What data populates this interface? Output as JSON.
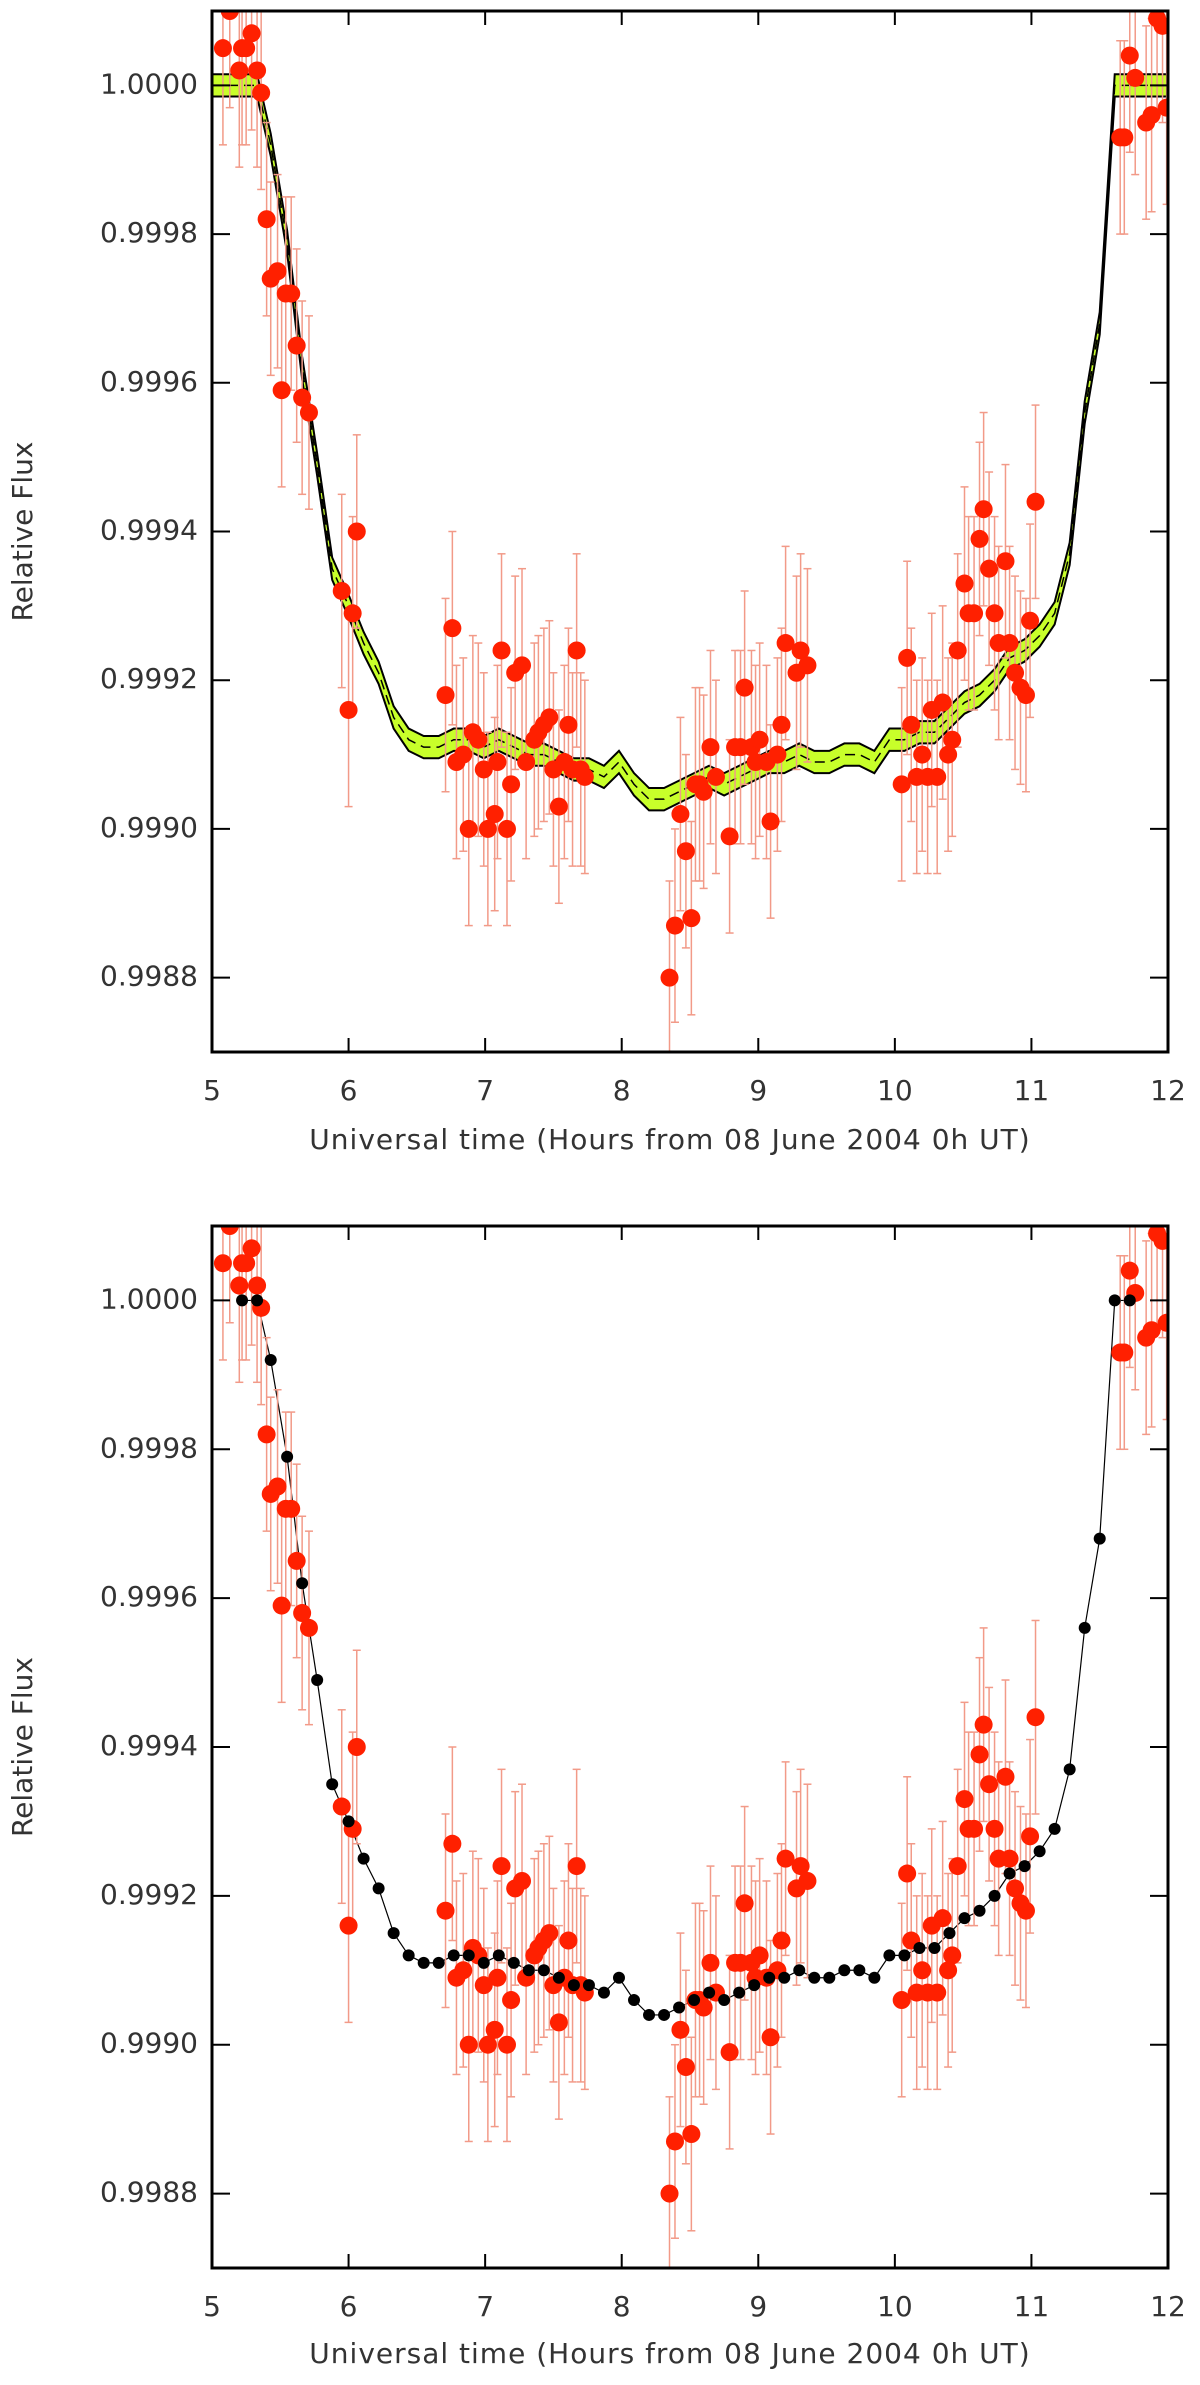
{
  "chart_data": [
    {
      "type": "scatter",
      "x_label": "Universal time (Hours from 08 June 2004 0h UT)",
      "y_label": "Relative Flux",
      "xlim": [
        5,
        12
      ],
      "ylim": [
        0.9987,
        1.0001
      ],
      "xticks": [
        5,
        6,
        7,
        8,
        9,
        10,
        11,
        12
      ],
      "yticks": [
        {
          "value": 0.9988,
          "label": "0.9988"
        },
        {
          "value": 0.999,
          "label": "0.9990"
        },
        {
          "value": 0.9992,
          "label": "0.9992"
        },
        {
          "value": 0.9994,
          "label": "0.9994"
        },
        {
          "value": 0.9996,
          "label": "0.9996"
        },
        {
          "value": 0.9998,
          "label": "0.9998"
        },
        {
          "value": 1,
          "label": "1.0000"
        }
      ],
      "color": "#ff2000",
      "error_color": "#f29a88",
      "error": 0.00013,
      "x": [
        5.08,
        5.13,
        5.2,
        5.22,
        5.25,
        5.29,
        5.33,
        5.36,
        5.4,
        5.43,
        5.48,
        5.51,
        5.54,
        5.58,
        5.62,
        5.66,
        5.71,
        5.95,
        6.0,
        6.03,
        6.06,
        6.71,
        6.76,
        6.79,
        6.84,
        6.88,
        6.91,
        6.95,
        6.99,
        7.02,
        7.07,
        7.09,
        7.12,
        7.16,
        7.19,
        7.22,
        7.27,
        7.3,
        7.36,
        7.39,
        7.43,
        7.47,
        7.5,
        7.54,
        7.58,
        7.61,
        7.64,
        7.67,
        7.7,
        7.73,
        8.35,
        8.39,
        8.43,
        8.47,
        8.51,
        8.54,
        8.57,
        8.6,
        8.65,
        8.69,
        8.79,
        8.83,
        8.87,
        8.9,
        8.95,
        8.98,
        9.01,
        9.06,
        9.09,
        9.14,
        9.17,
        9.2,
        9.28,
        9.31,
        9.36,
        10.05,
        10.09,
        10.12,
        10.16,
        10.2,
        10.24,
        10.27,
        10.31,
        10.35,
        10.39,
        10.42,
        10.46,
        10.51,
        10.54,
        10.58,
        10.62,
        10.65,
        10.69,
        10.73,
        10.76,
        10.81,
        10.84,
        10.88,
        10.92,
        10.96,
        10.99,
        11.03,
        11.65,
        11.68,
        11.72,
        11.76,
        11.84,
        11.88,
        11.92,
        11.96,
        11.99
      ],
      "values": [
        1.00005,
        1.0001,
        1.00002,
        1.00005,
        1.00005,
        1.00007,
        1.00002,
        0.99999,
        0.99982,
        0.99974,
        0.99975,
        0.99959,
        0.99972,
        0.99972,
        0.99965,
        0.99958,
        0.99956,
        0.99932,
        0.99916,
        0.99929,
        0.9994,
        0.99918,
        0.99927,
        0.99909,
        0.9991,
        0.999,
        0.99913,
        0.99912,
        0.99908,
        0.999,
        0.99902,
        0.99909,
        0.99924,
        0.999,
        0.99906,
        0.99921,
        0.99922,
        0.99909,
        0.99912,
        0.99913,
        0.99914,
        0.99915,
        0.99908,
        0.99903,
        0.99909,
        0.99914,
        0.99908,
        0.99924,
        0.99908,
        0.99907,
        0.9988,
        0.99887,
        0.99902,
        0.99897,
        0.99888,
        0.99906,
        0.99906,
        0.99905,
        0.99911,
        0.99907,
        0.99899,
        0.99911,
        0.99911,
        0.99919,
        0.99911,
        0.99909,
        0.99912,
        0.99909,
        0.99901,
        0.9991,
        0.99914,
        0.99925,
        0.99921,
        0.99924,
        0.99922,
        0.99906,
        0.99923,
        0.99914,
        0.99907,
        0.9991,
        0.99907,
        0.99916,
        0.99907,
        0.99917,
        0.9991,
        0.99912,
        0.99924,
        0.99933,
        0.99929,
        0.99929,
        0.99939,
        0.99943,
        0.99935,
        0.99929,
        0.99925,
        0.99936,
        0.99925,
        0.99921,
        0.99919,
        0.99918,
        0.99928,
        0.99944,
        0.99993,
        0.99993,
        1.00004,
        1.00001,
        0.99995,
        0.99996,
        1.00009,
        1.00008,
        0.99997
      ],
      "model_style": "band",
      "model_color": "#000000",
      "band_color": "#c8ff2a",
      "band": 1.5e-05,
      "model": {
        "x": [
          5.0,
          5.22,
          5.33,
          5.43,
          5.55,
          5.66,
          5.77,
          5.88,
          6.0,
          6.11,
          6.22,
          6.33,
          6.44,
          6.55,
          6.66,
          6.77,
          6.88,
          6.99,
          7.1,
          7.21,
          7.32,
          7.43,
          7.54,
          7.65,
          7.76,
          7.87,
          7.98,
          8.09,
          8.2,
          8.31,
          8.42,
          8.53,
          8.64,
          8.75,
          8.86,
          8.97,
          9.08,
          9.19,
          9.3,
          9.41,
          9.52,
          9.63,
          9.74,
          9.85,
          9.96,
          10.07,
          10.18,
          10.29,
          10.4,
          10.51,
          10.62,
          10.73,
          10.84,
          10.95,
          11.06,
          11.17,
          11.28,
          11.39,
          11.5,
          11.61,
          11.72,
          12.0
        ],
        "values": [
          1.0,
          1.0,
          1.0,
          0.99992,
          0.99979,
          0.99962,
          0.99949,
          0.99935,
          0.9993,
          0.99925,
          0.99921,
          0.99915,
          0.99912,
          0.99911,
          0.99911,
          0.99912,
          0.99912,
          0.99911,
          0.99912,
          0.99911,
          0.9991,
          0.9991,
          0.99909,
          0.99908,
          0.99908,
          0.99907,
          0.99909,
          0.99906,
          0.99904,
          0.99904,
          0.99905,
          0.99906,
          0.99907,
          0.99906,
          0.99907,
          0.99908,
          0.99909,
          0.99909,
          0.9991,
          0.99909,
          0.99909,
          0.9991,
          0.9991,
          0.99909,
          0.99912,
          0.99912,
          0.99913,
          0.99913,
          0.99915,
          0.99917,
          0.99918,
          0.9992,
          0.99923,
          0.99924,
          0.99926,
          0.99929,
          0.99937,
          0.99956,
          0.99968,
          1.0,
          1.0,
          1.0
        ]
      }
    },
    {
      "type": "scatter",
      "x_label": "Universal time (Hours from 08 June 2004 0h UT)",
      "y_label": "Relative Flux",
      "xlim": [
        5,
        12
      ],
      "ylim": [
        0.9987,
        1.0001
      ],
      "xticks": [
        5,
        6,
        7,
        8,
        9,
        10,
        11,
        12
      ],
      "yticks": [
        {
          "value": 0.9988,
          "label": "0.9988"
        },
        {
          "value": 0.999,
          "label": "0.9990"
        },
        {
          "value": 0.9992,
          "label": "0.9992"
        },
        {
          "value": 0.9994,
          "label": "0.9994"
        },
        {
          "value": 0.9996,
          "label": "0.9996"
        },
        {
          "value": 0.9998,
          "label": "0.9998"
        },
        {
          "value": 1,
          "label": "1.0000"
        }
      ],
      "color": "#ff2000",
      "error_color": "#f29a88",
      "error": 0.00013,
      "x": [
        5.08,
        5.13,
        5.2,
        5.22,
        5.25,
        5.29,
        5.33,
        5.36,
        5.4,
        5.43,
        5.48,
        5.51,
        5.54,
        5.58,
        5.62,
        5.66,
        5.71,
        5.95,
        6.0,
        6.03,
        6.06,
        6.71,
        6.76,
        6.79,
        6.84,
        6.88,
        6.91,
        6.95,
        6.99,
        7.02,
        7.07,
        7.09,
        7.12,
        7.16,
        7.19,
        7.22,
        7.27,
        7.3,
        7.36,
        7.39,
        7.43,
        7.47,
        7.5,
        7.54,
        7.58,
        7.61,
        7.64,
        7.67,
        7.7,
        7.73,
        8.35,
        8.39,
        8.43,
        8.47,
        8.51,
        8.54,
        8.57,
        8.6,
        8.65,
        8.69,
        8.79,
        8.83,
        8.87,
        8.9,
        8.95,
        8.98,
        9.01,
        9.06,
        9.09,
        9.14,
        9.17,
        9.2,
        9.28,
        9.31,
        9.36,
        10.05,
        10.09,
        10.12,
        10.16,
        10.2,
        10.24,
        10.27,
        10.31,
        10.35,
        10.39,
        10.42,
        10.46,
        10.51,
        10.54,
        10.58,
        10.62,
        10.65,
        10.69,
        10.73,
        10.76,
        10.81,
        10.84,
        10.88,
        10.92,
        10.96,
        10.99,
        11.03,
        11.65,
        11.68,
        11.72,
        11.76,
        11.84,
        11.88,
        11.92,
        11.96,
        11.99
      ],
      "values": [
        1.00005,
        1.0001,
        1.00002,
        1.00005,
        1.00005,
        1.00007,
        1.00002,
        0.99999,
        0.99982,
        0.99974,
        0.99975,
        0.99959,
        0.99972,
        0.99972,
        0.99965,
        0.99958,
        0.99956,
        0.99932,
        0.99916,
        0.99929,
        0.9994,
        0.99918,
        0.99927,
        0.99909,
        0.9991,
        0.999,
        0.99913,
        0.99912,
        0.99908,
        0.999,
        0.99902,
        0.99909,
        0.99924,
        0.999,
        0.99906,
        0.99921,
        0.99922,
        0.99909,
        0.99912,
        0.99913,
        0.99914,
        0.99915,
        0.99908,
        0.99903,
        0.99909,
        0.99914,
        0.99908,
        0.99924,
        0.99908,
        0.99907,
        0.9988,
        0.99887,
        0.99902,
        0.99897,
        0.99888,
        0.99906,
        0.99906,
        0.99905,
        0.99911,
        0.99907,
        0.99899,
        0.99911,
        0.99911,
        0.99919,
        0.99911,
        0.99909,
        0.99912,
        0.99909,
        0.99901,
        0.9991,
        0.99914,
        0.99925,
        0.99921,
        0.99924,
        0.99922,
        0.99906,
        0.99923,
        0.99914,
        0.99907,
        0.9991,
        0.99907,
        0.99916,
        0.99907,
        0.99917,
        0.9991,
        0.99912,
        0.99924,
        0.99933,
        0.99929,
        0.99929,
        0.99939,
        0.99943,
        0.99935,
        0.99929,
        0.99925,
        0.99936,
        0.99925,
        0.99921,
        0.99919,
        0.99918,
        0.99928,
        0.99944,
        0.99993,
        0.99993,
        1.00004,
        1.00001,
        0.99995,
        0.99996,
        1.00009,
        1.00008,
        0.99997
      ],
      "model_style": "dots",
      "model_color": "#000000",
      "model": {
        "x": [
          5.22,
          5.33,
          5.43,
          5.55,
          5.66,
          5.77,
          5.88,
          6.0,
          6.11,
          6.22,
          6.33,
          6.44,
          6.55,
          6.66,
          6.77,
          6.88,
          6.99,
          7.1,
          7.21,
          7.32,
          7.43,
          7.54,
          7.65,
          7.76,
          7.87,
          7.98,
          8.09,
          8.2,
          8.31,
          8.42,
          8.53,
          8.64,
          8.75,
          8.86,
          8.97,
          9.08,
          9.19,
          9.3,
          9.41,
          9.52,
          9.63,
          9.74,
          9.85,
          9.96,
          10.07,
          10.18,
          10.29,
          10.4,
          10.51,
          10.62,
          10.73,
          10.84,
          10.95,
          11.06,
          11.17,
          11.28,
          11.39,
          11.5,
          11.61,
          11.72
        ],
        "values": [
          1.0,
          1.0,
          0.99992,
          0.99979,
          0.99962,
          0.99949,
          0.99935,
          0.9993,
          0.99925,
          0.99921,
          0.99915,
          0.99912,
          0.99911,
          0.99911,
          0.99912,
          0.99912,
          0.99911,
          0.99912,
          0.99911,
          0.9991,
          0.9991,
          0.99909,
          0.99908,
          0.99908,
          0.99907,
          0.99909,
          0.99906,
          0.99904,
          0.99904,
          0.99905,
          0.99906,
          0.99907,
          0.99906,
          0.99907,
          0.99908,
          0.99909,
          0.99909,
          0.9991,
          0.99909,
          0.99909,
          0.9991,
          0.9991,
          0.99909,
          0.99912,
          0.99912,
          0.99913,
          0.99913,
          0.99915,
          0.99917,
          0.99918,
          0.9992,
          0.99923,
          0.99924,
          0.99926,
          0.99929,
          0.99937,
          0.99956,
          0.99968,
          1.0,
          1.0
        ]
      }
    }
  ]
}
